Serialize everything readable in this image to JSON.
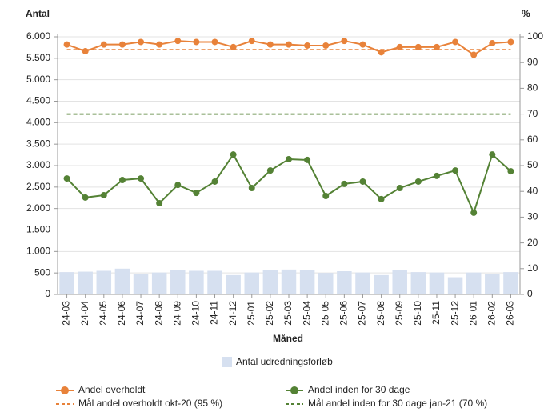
{
  "chart_data": {
    "type": "combo",
    "y_label": "Antal",
    "y2_label": "%",
    "x_label": "Måned",
    "categories": [
      "24-03",
      "24-04",
      "24-05",
      "24-06",
      "24-07",
      "24-08",
      "24-09",
      "24-10",
      "24-11",
      "24-12",
      "25-01",
      "25-02",
      "25-03",
      "25-04",
      "25-05",
      "25-06",
      "25-07",
      "25-08",
      "25-09",
      "25-10",
      "25-11",
      "25-12",
      "26-01",
      "26-02",
      "26-03"
    ],
    "ylim": [
      0,
      6000
    ],
    "yticks": [
      {
        "value": 0,
        "label": "0"
      },
      {
        "value": 500,
        "label": "500"
      },
      {
        "value": 1000,
        "label": "1.000"
      },
      {
        "value": 1500,
        "label": "1.500"
      },
      {
        "value": 2000,
        "label": "2.000"
      },
      {
        "value": 2500,
        "label": "2.500"
      },
      {
        "value": 3000,
        "label": "3.000"
      },
      {
        "value": 3500,
        "label": "3.500"
      },
      {
        "value": 4000,
        "label": "4.000"
      },
      {
        "value": 4500,
        "label": "4.500"
      },
      {
        "value": 5000,
        "label": "5.000"
      },
      {
        "value": 5500,
        "label": "5.500"
      },
      {
        "value": 6000,
        "label": "6.000"
      }
    ],
    "y2lim": [
      0,
      100
    ],
    "y2ticks": [
      0,
      10,
      20,
      30,
      40,
      50,
      60,
      70,
      80,
      90,
      100
    ],
    "grid": true,
    "series": [
      {
        "name": "Antal udredningsforløb",
        "type": "bar",
        "color": "#d6e0f0",
        "values": [
          520,
          530,
          550,
          600,
          470,
          510,
          560,
          550,
          550,
          450,
          510,
          570,
          580,
          560,
          500,
          540,
          510,
          450,
          560,
          520,
          510,
          400,
          510,
          480,
          520
        ]
      },
      {
        "name": "Andel overholdt",
        "type": "line",
        "axis": "y2",
        "color": "#e8823a",
        "marker": true,
        "dash": false,
        "values": [
          97,
          94.4,
          97,
          97,
          98,
          97,
          98.4,
          98,
          98,
          96,
          98.4,
          97,
          97,
          96.6,
          96.6,
          98.4,
          97,
          94,
          96,
          96,
          96,
          98,
          93,
          97.5,
          98
        ]
      },
      {
        "name": "Andel inden for 30 dage",
        "type": "line",
        "axis": "y2",
        "color": "#548235",
        "marker": true,
        "dash": false,
        "values": [
          45,
          37.6,
          38.5,
          44.4,
          45,
          35.4,
          42.5,
          39.4,
          43.8,
          54.3,
          41.3,
          48.1,
          52.5,
          52.2,
          38.2,
          42.9,
          43.8,
          37,
          41.3,
          43.8,
          46,
          48.1,
          31.7,
          54.3,
          47.8
        ]
      },
      {
        "name": "Mål andel overholdt okt-20 (95 %)",
        "type": "line",
        "axis": "y2",
        "color": "#e8823a",
        "marker": false,
        "dash": true,
        "values": [
          95,
          95,
          95,
          95,
          95,
          95,
          95,
          95,
          95,
          95,
          95,
          95,
          95,
          95,
          95,
          95,
          95,
          95,
          95,
          95,
          95,
          95,
          95,
          95,
          95
        ]
      },
      {
        "name": "Mål andel inden for 30 dage jan-21 (70 %)",
        "type": "line",
        "axis": "y2",
        "color": "#548235",
        "marker": false,
        "dash": true,
        "values": [
          70,
          70,
          70,
          70,
          70,
          70,
          70,
          70,
          70,
          70,
          70,
          70,
          70,
          70,
          70,
          70,
          70,
          70,
          70,
          70,
          70,
          70,
          70,
          70,
          70
        ]
      }
    ]
  }
}
